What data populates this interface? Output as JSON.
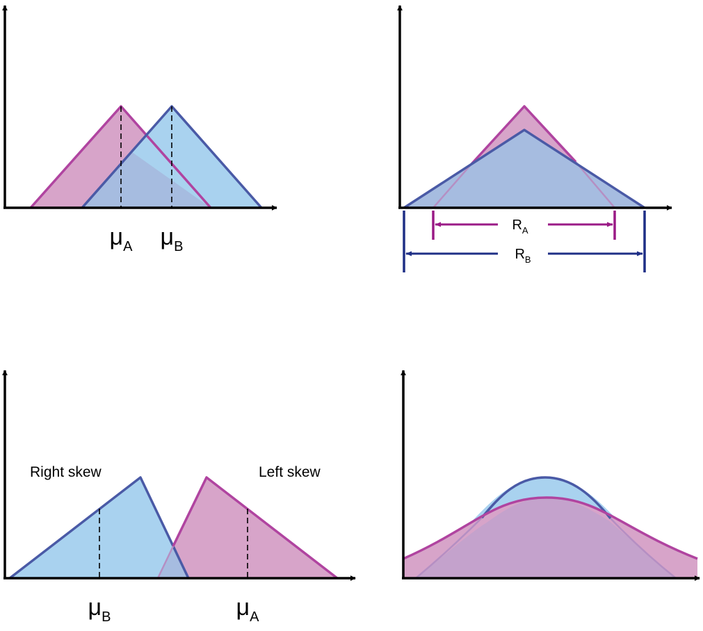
{
  "colors": {
    "pink_fill": "#d7a4c9",
    "pink_stroke": "#b044a0",
    "blue_fill": "#a9d2ef",
    "blue_stroke": "#4a5aa6",
    "overlap_fill": "#a6bce0",
    "range_a": "#9a1a86",
    "range_b": "#1f2f86",
    "axis": "#000000"
  },
  "panel1": {
    "mu_a": {
      "main": "μ",
      "sub": "A"
    },
    "mu_b": {
      "main": "μ",
      "sub": "B"
    }
  },
  "panel2": {
    "range_a": {
      "main": "R",
      "sub": "A"
    },
    "range_b": {
      "main": "R",
      "sub": "B"
    }
  },
  "panel3": {
    "right_skew_label": "Right skew",
    "left_skew_label": "Left skew",
    "mu_b": {
      "main": "μ",
      "sub": "B"
    },
    "mu_a": {
      "main": "μ",
      "sub": "A"
    }
  },
  "panel4": {}
}
